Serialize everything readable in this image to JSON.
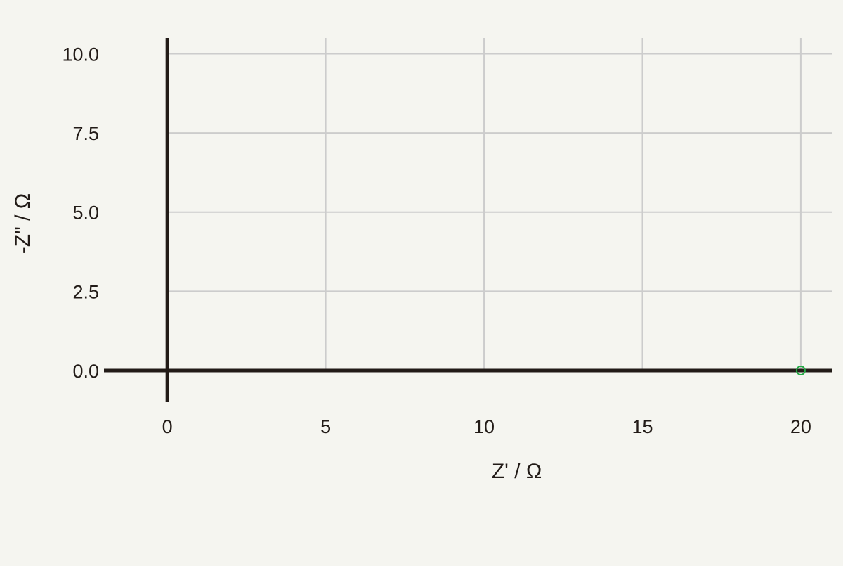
{
  "chart_data": {
    "type": "scatter",
    "title": "",
    "xlabel": "Z' / Ω",
    "ylabel": "-Z\" / Ω",
    "xlim": [
      -2,
      21.0
    ],
    "ylim": [
      -1.0,
      10.5
    ],
    "xticks": [
      0,
      5,
      10,
      15,
      20
    ],
    "xtick_labels": [
      "0",
      "5",
      "10",
      "15",
      "20"
    ],
    "yticks": [
      0,
      2.5,
      5,
      7.5,
      10
    ],
    "ytick_labels": [
      "0.0",
      "2.5",
      "5.0",
      "7.5",
      "10.0"
    ],
    "grid": true,
    "series": [
      {
        "marker": "open-circle",
        "color": "#22aa44",
        "points": [
          {
            "x": 20.0,
            "y": 0.0
          }
        ]
      }
    ]
  },
  "colors": {
    "background": "#f5f5f0",
    "grid": "#cccccc",
    "axis": "#221b17",
    "marker": "#22aa44"
  }
}
